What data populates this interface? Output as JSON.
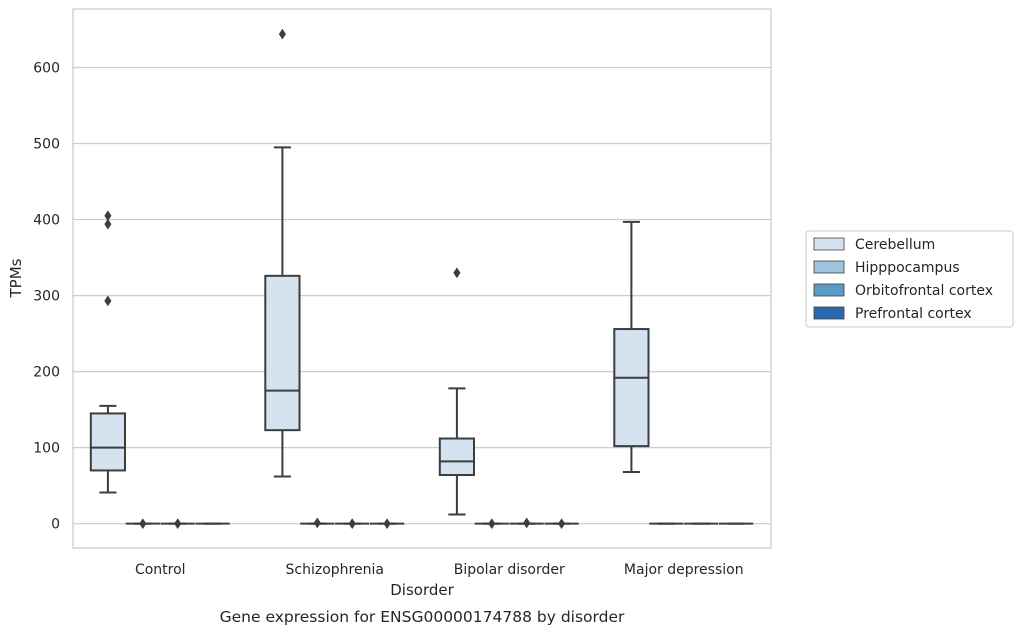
{
  "chart_data": {
    "type": "box",
    "title": "",
    "caption": "Gene expression for ENSG00000174788 by disorder",
    "xlabel": "Disorder",
    "ylabel": "TPMs",
    "ylim": [
      -32,
      677
    ],
    "yticks": [
      0,
      100,
      200,
      300,
      400,
      500,
      600
    ],
    "grid": "horizontal",
    "legend_position": "right",
    "categories": [
      "Control",
      "Schizophrenia",
      "Bipolar disorder",
      "Major depression"
    ],
    "series": [
      {
        "name": "Cerebellum",
        "color": "#d5e3f0",
        "boxes": [
          {
            "whisker_low": 41,
            "q1": 70,
            "median": 100,
            "q3": 145,
            "whisker_high": 155,
            "outliers": [
              293,
              394,
              405
            ]
          },
          {
            "whisker_low": 62,
            "q1": 123,
            "median": 175,
            "q3": 326,
            "whisker_high": 495,
            "outliers": [
              644
            ]
          },
          {
            "whisker_low": 12,
            "q1": 64,
            "median": 82,
            "q3": 112,
            "whisker_high": 178,
            "outliers": [
              330
            ]
          },
          {
            "whisker_low": 68,
            "q1": 102,
            "median": 192,
            "q3": 256,
            "whisker_high": 397,
            "outliers": []
          }
        ]
      },
      {
        "name": "Hipppocampus",
        "color": "#9dc3dd",
        "boxes": [
          {
            "whisker_low": 0,
            "q1": 0,
            "median": 0,
            "q3": 0,
            "whisker_high": 0,
            "outliers": [
              0
            ]
          },
          {
            "whisker_low": 0,
            "q1": 0,
            "median": 0,
            "q3": 0,
            "whisker_high": 0,
            "outliers": [
              1
            ]
          },
          {
            "whisker_low": 0,
            "q1": 0,
            "median": 0,
            "q3": 0,
            "whisker_high": 0,
            "outliers": [
              0
            ]
          },
          {
            "whisker_low": 0,
            "q1": 0,
            "median": 0,
            "q3": 0,
            "whisker_high": 0,
            "outliers": []
          }
        ]
      },
      {
        "name": "Orbitofrontal cortex",
        "color": "#5b9bc6",
        "boxes": [
          {
            "whisker_low": 0,
            "q1": 0,
            "median": 0,
            "q3": 0,
            "whisker_high": 0,
            "outliers": [
              0
            ]
          },
          {
            "whisker_low": 0,
            "q1": 0,
            "median": 0,
            "q3": 0,
            "whisker_high": 0,
            "outliers": [
              0
            ]
          },
          {
            "whisker_low": 0,
            "q1": 0,
            "median": 0,
            "q3": 0,
            "whisker_high": 0,
            "outliers": [
              1
            ]
          },
          {
            "whisker_low": 0,
            "q1": 0,
            "median": 0,
            "q3": 0,
            "whisker_high": 0,
            "outliers": []
          }
        ]
      },
      {
        "name": "Prefrontal cortex",
        "color": "#2a6aac",
        "boxes": [
          {
            "whisker_low": 0,
            "q1": 0,
            "median": 0,
            "q3": 0,
            "whisker_high": 0,
            "outliers": []
          },
          {
            "whisker_low": 0,
            "q1": 0,
            "median": 0,
            "q3": 0,
            "whisker_high": 0,
            "outliers": [
              0
            ]
          },
          {
            "whisker_low": 0,
            "q1": 0,
            "median": 0,
            "q3": 0,
            "whisker_high": 0,
            "outliers": [
              0
            ]
          },
          {
            "whisker_low": 0,
            "q1": 0,
            "median": 0,
            "q3": 0,
            "whisker_high": 0,
            "outliers": []
          }
        ]
      }
    ]
  }
}
